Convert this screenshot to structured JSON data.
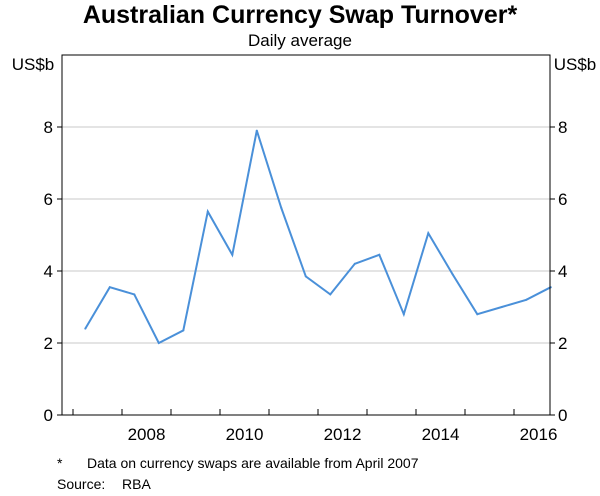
{
  "chart_data": {
    "type": "line",
    "title": "Australian Currency Swap Turnover*",
    "subtitle": "Daily average",
    "ylabel_left": "US$b",
    "ylabel_right": "US$b",
    "ylim": [
      0,
      10
    ],
    "yticks": [
      "0",
      "2",
      "4",
      "6",
      "8"
    ],
    "xticks": [
      "2008",
      "2010",
      "2012",
      "2014",
      "2016"
    ],
    "grid": true,
    "series": [
      {
        "color": "#4a90d9",
        "x": [
          "2007-04",
          "2007-10",
          "2008-04",
          "2008-10",
          "2009-04",
          "2009-10",
          "2010-04",
          "2010-10",
          "2011-04",
          "2011-10",
          "2012-04",
          "2012-10",
          "2013-04",
          "2013-10",
          "2014-04",
          "2014-10",
          "2015-04",
          "2015-10",
          "2016-04",
          "2016-10"
        ],
        "values": [
          2.4,
          3.55,
          3.35,
          2.0,
          2.35,
          5.65,
          4.45,
          7.9,
          5.75,
          3.85,
          3.35,
          4.2,
          4.45,
          2.8,
          5.05,
          3.9,
          2.8,
          3.0,
          3.2,
          3.55
        ]
      }
    ]
  },
  "footnotes": {
    "note_mark": "*",
    "note_text": "Data on currency swaps are available from April 2007",
    "source_label": "Source:",
    "source_text": "RBA"
  }
}
